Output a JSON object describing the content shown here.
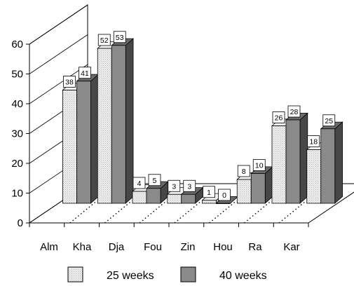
{
  "chart_data": {
    "type": "bar",
    "title": "",
    "xlabel": "",
    "ylabel": "",
    "ylim": [
      0,
      60
    ],
    "y_ticks": [
      0,
      10,
      20,
      30,
      40,
      50,
      60
    ],
    "categories": [
      "Alm",
      "Kha",
      "Dja",
      "Fou",
      "Zin",
      "Hou",
      "Ra",
      "Kar"
    ],
    "series": [
      {
        "name": "25 weeks",
        "values": [
          38,
          52,
          4,
          3,
          1,
          8,
          26,
          18
        ],
        "color": "#e6e6e6"
      },
      {
        "name": "40 weeks",
        "values": [
          41,
          53,
          5,
          3,
          0,
          10,
          28,
          25
        ],
        "color": "#8a8a8a"
      }
    ],
    "data_labels": true,
    "legend_position": "bottom",
    "style": "3d-clustered-column"
  }
}
